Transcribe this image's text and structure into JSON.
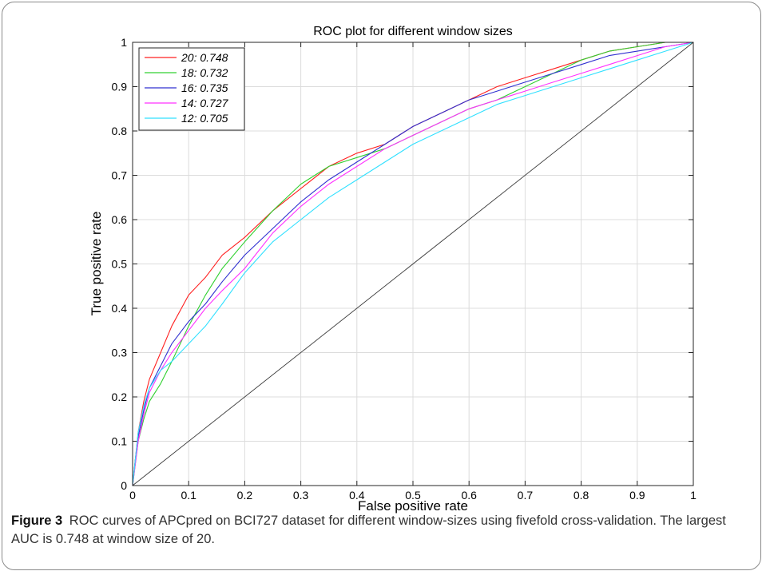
{
  "chart_data": {
    "type": "line",
    "title": "ROC plot for different window sizes",
    "xlabel": "False positive rate",
    "ylabel": "True positive rate",
    "xlim": [
      0,
      1
    ],
    "ylim": [
      0,
      1
    ],
    "xticks": [
      "0",
      "0.1",
      "0.2",
      "0.3",
      "0.4",
      "0.5",
      "0.6",
      "0.7",
      "0.8",
      "0.9",
      "1"
    ],
    "yticks": [
      "0",
      "0.1",
      "0.2",
      "0.3",
      "0.4",
      "0.5",
      "0.6",
      "0.7",
      "0.8",
      "0.9",
      "1"
    ],
    "grid": true,
    "legend_position": "top-left",
    "series": [
      {
        "name": "20: 0.748",
        "color": "#ff2020",
        "x": [
          0,
          0.005,
          0.01,
          0.02,
          0.03,
          0.05,
          0.07,
          0.1,
          0.13,
          0.16,
          0.2,
          0.25,
          0.3,
          0.35,
          0.4,
          0.45,
          0.5,
          0.55,
          0.6,
          0.65,
          0.7,
          0.75,
          0.8,
          0.85,
          0.9,
          0.95,
          1.0
        ],
        "y": [
          0,
          0.06,
          0.12,
          0.19,
          0.24,
          0.3,
          0.36,
          0.43,
          0.47,
          0.52,
          0.56,
          0.62,
          0.67,
          0.72,
          0.75,
          0.77,
          0.81,
          0.84,
          0.87,
          0.9,
          0.92,
          0.94,
          0.96,
          0.98,
          0.99,
          1.0,
          1.0
        ]
      },
      {
        "name": "18: 0.732",
        "color": "#30d030",
        "x": [
          0,
          0.005,
          0.01,
          0.02,
          0.03,
          0.05,
          0.07,
          0.1,
          0.13,
          0.16,
          0.2,
          0.25,
          0.3,
          0.35,
          0.4,
          0.45,
          0.5,
          0.55,
          0.6,
          0.65,
          0.7,
          0.75,
          0.8,
          0.85,
          0.9,
          0.95,
          1.0
        ],
        "y": [
          0,
          0.05,
          0.1,
          0.15,
          0.19,
          0.23,
          0.28,
          0.36,
          0.43,
          0.49,
          0.55,
          0.62,
          0.68,
          0.72,
          0.74,
          0.76,
          0.79,
          0.82,
          0.85,
          0.87,
          0.9,
          0.93,
          0.96,
          0.98,
          0.99,
          1.0,
          1.0
        ]
      },
      {
        "name": "16: 0.735",
        "color": "#3030d0",
        "x": [
          0,
          0.005,
          0.01,
          0.02,
          0.03,
          0.05,
          0.07,
          0.1,
          0.13,
          0.16,
          0.2,
          0.25,
          0.3,
          0.35,
          0.4,
          0.45,
          0.5,
          0.55,
          0.6,
          0.65,
          0.7,
          0.75,
          0.8,
          0.85,
          0.9,
          0.95,
          1.0
        ],
        "y": [
          0,
          0.06,
          0.11,
          0.17,
          0.22,
          0.27,
          0.32,
          0.37,
          0.41,
          0.46,
          0.52,
          0.58,
          0.64,
          0.69,
          0.73,
          0.77,
          0.81,
          0.84,
          0.87,
          0.89,
          0.91,
          0.93,
          0.95,
          0.97,
          0.98,
          0.99,
          1.0
        ]
      },
      {
        "name": "14: 0.727",
        "color": "#ff30ff",
        "x": [
          0,
          0.005,
          0.01,
          0.02,
          0.03,
          0.05,
          0.07,
          0.1,
          0.13,
          0.16,
          0.2,
          0.25,
          0.3,
          0.35,
          0.4,
          0.45,
          0.5,
          0.55,
          0.6,
          0.65,
          0.7,
          0.75,
          0.8,
          0.85,
          0.9,
          0.95,
          1.0
        ],
        "y": [
          0,
          0.05,
          0.1,
          0.16,
          0.21,
          0.26,
          0.3,
          0.35,
          0.4,
          0.44,
          0.49,
          0.57,
          0.63,
          0.68,
          0.72,
          0.76,
          0.79,
          0.82,
          0.85,
          0.87,
          0.89,
          0.91,
          0.93,
          0.95,
          0.97,
          0.99,
          1.0
        ]
      },
      {
        "name": "12: 0.705",
        "color": "#30e0ff",
        "x": [
          0,
          0.005,
          0.01,
          0.02,
          0.03,
          0.05,
          0.07,
          0.1,
          0.13,
          0.16,
          0.2,
          0.25,
          0.3,
          0.35,
          0.4,
          0.45,
          0.5,
          0.55,
          0.6,
          0.65,
          0.7,
          0.75,
          0.8,
          0.85,
          0.9,
          0.95,
          1.0
        ],
        "y": [
          0,
          0.06,
          0.12,
          0.18,
          0.22,
          0.26,
          0.28,
          0.32,
          0.36,
          0.41,
          0.48,
          0.55,
          0.6,
          0.65,
          0.69,
          0.73,
          0.77,
          0.8,
          0.83,
          0.86,
          0.88,
          0.9,
          0.92,
          0.94,
          0.96,
          0.98,
          1.0
        ]
      },
      {
        "name": "",
        "color": "#3a3a3a",
        "x": [
          0,
          1
        ],
        "y": [
          0,
          1
        ]
      }
    ]
  },
  "caption": {
    "label": "Figure 3",
    "text": "ROC curves of APCpred on BCI727 dataset for different window-sizes using fivefold cross-validation. The largest AUC is 0.748 at window size of 20."
  }
}
